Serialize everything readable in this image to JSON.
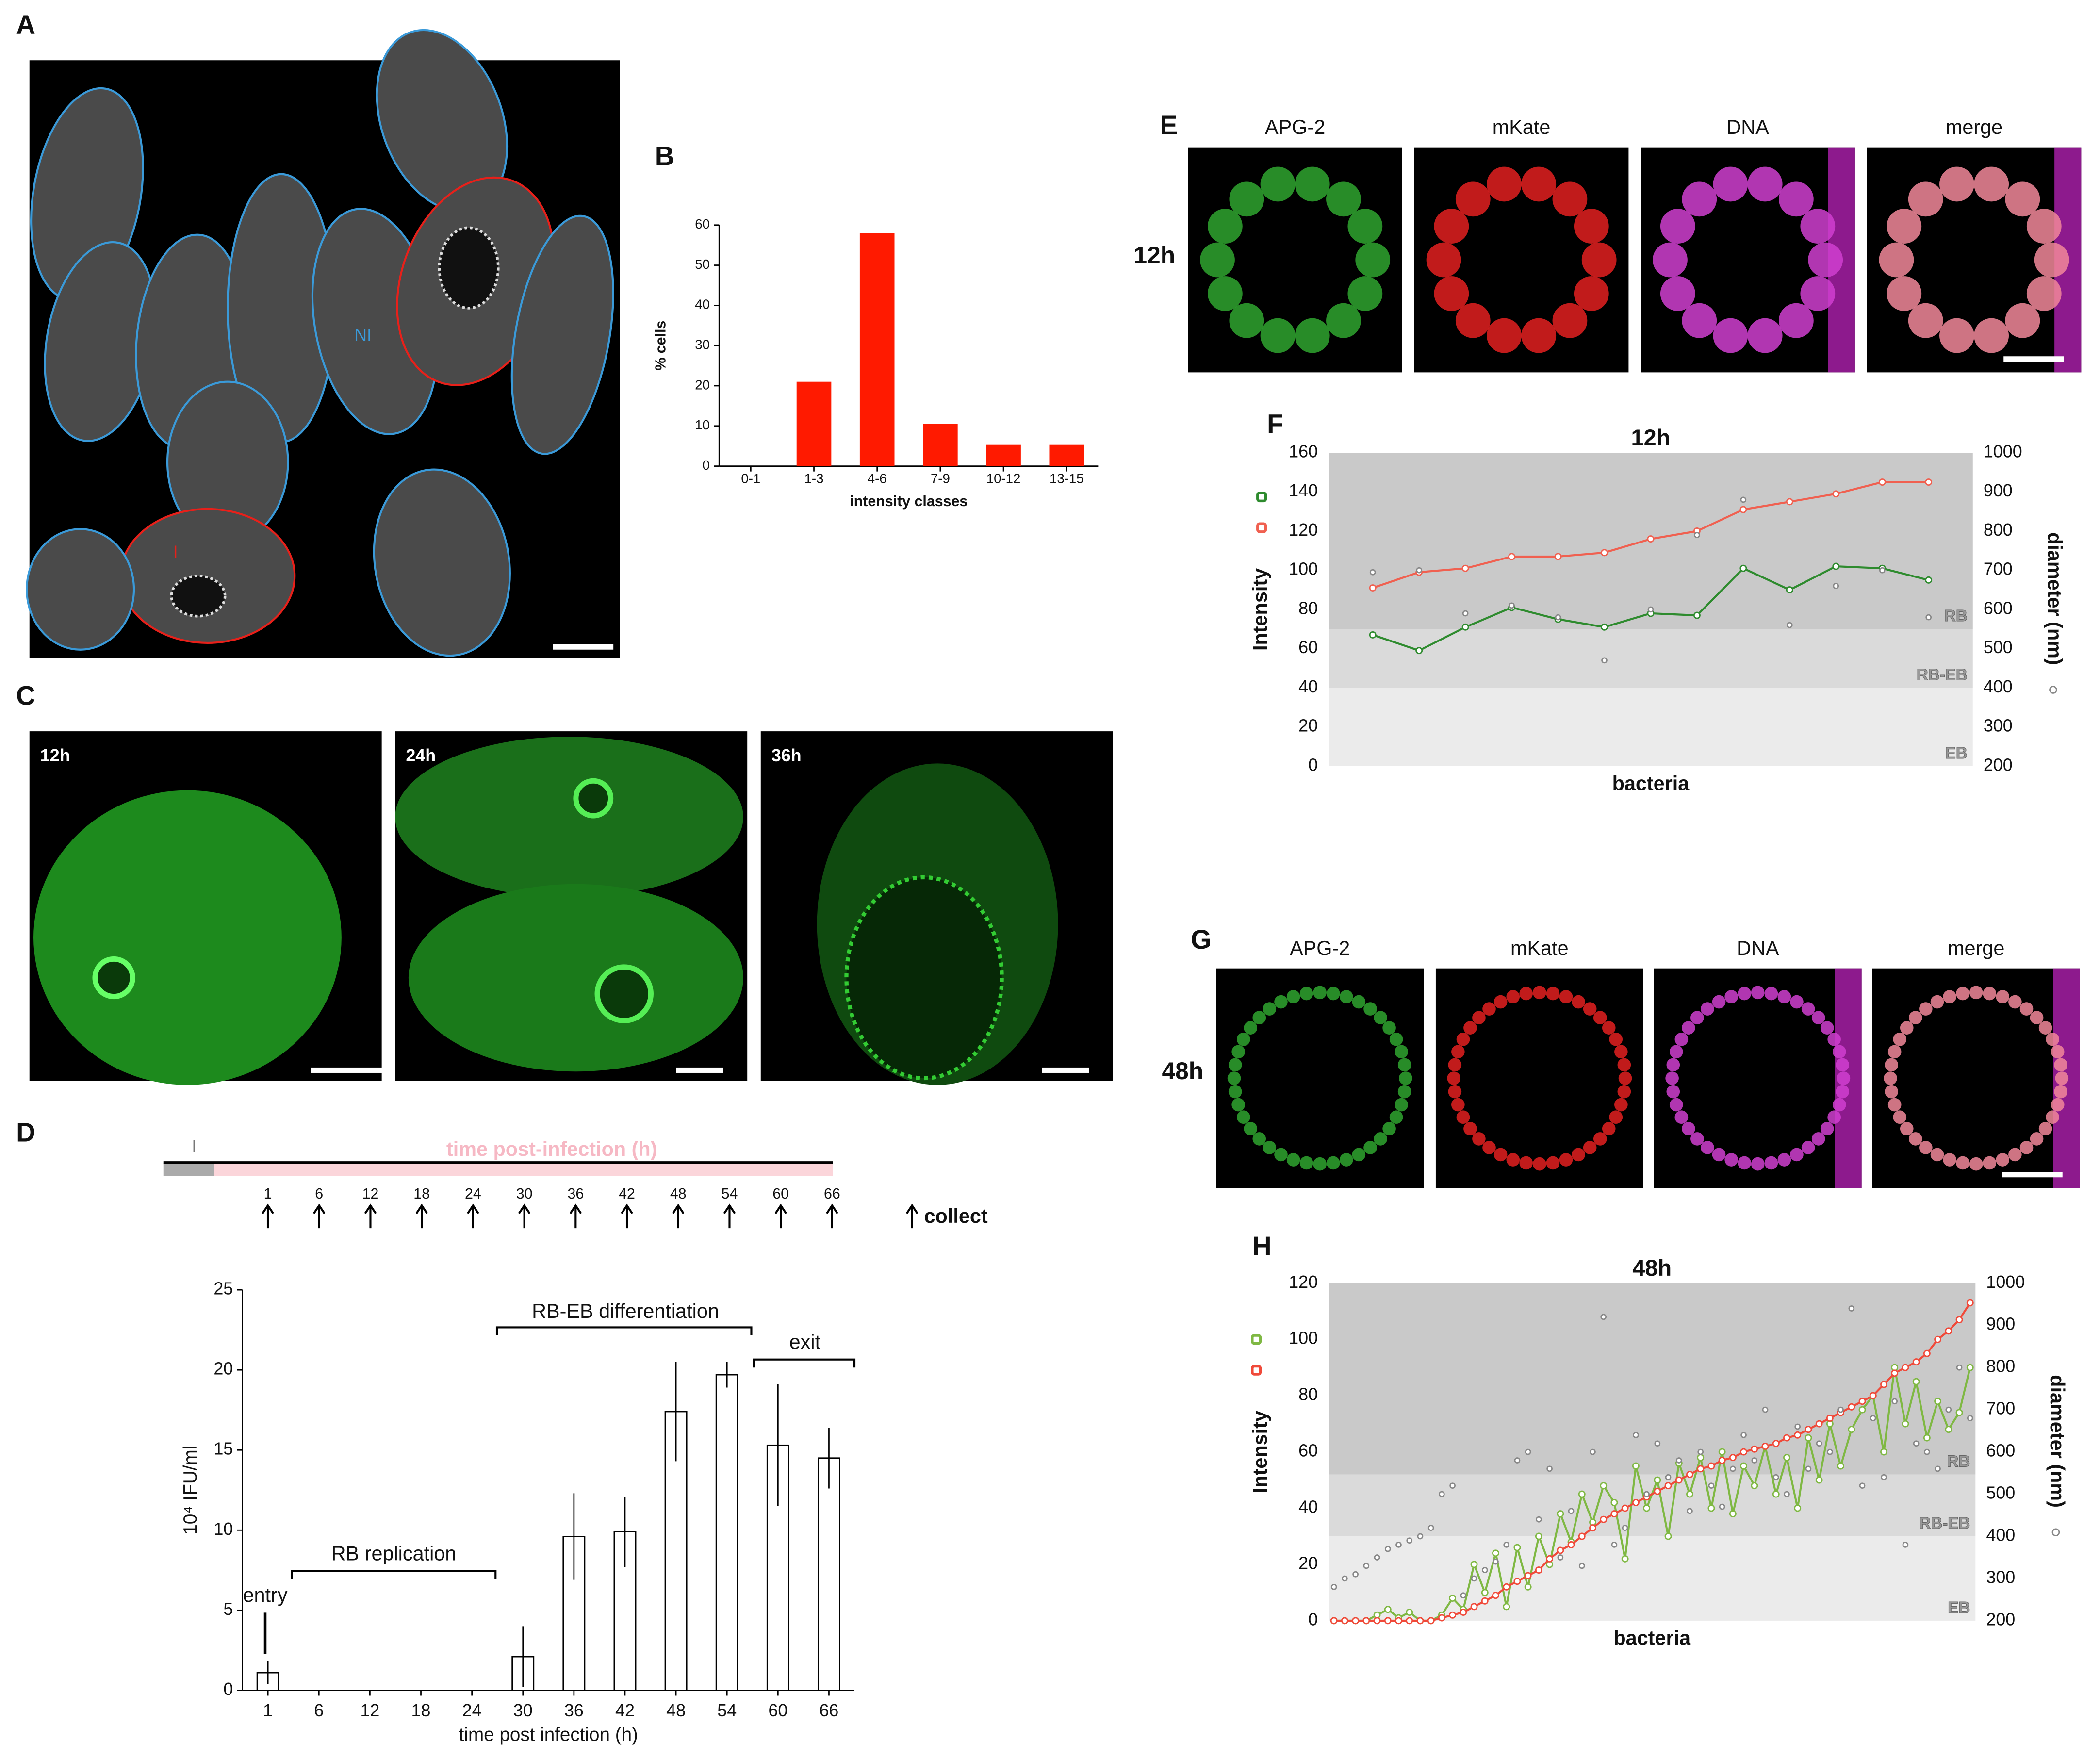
{
  "panels": [
    "A",
    "B",
    "C",
    "D",
    "E",
    "F",
    "G",
    "H"
  ],
  "images": {
    "A": {
      "labels": [
        "NI",
        "I"
      ]
    },
    "C": {
      "labels": [
        "12h",
        "24h",
        "36h"
      ]
    },
    "E": {
      "time": "12h",
      "channels": [
        "APG-2",
        "mKate",
        "DNA",
        "merge"
      ]
    },
    "G": {
      "time": "48h",
      "channels": [
        "APG-2",
        "mKate",
        "DNA",
        "merge"
      ]
    }
  },
  "timeline": {
    "marker": "I",
    "label": "time post-infection (h)",
    "ticks": [
      1,
      6,
      12,
      18,
      24,
      30,
      36,
      42,
      48,
      54,
      60,
      66
    ],
    "legend": "collect"
  },
  "chart_data": [
    {
      "type": "bar",
      "ylabel": "% cells",
      "xlabel": "intensity classes",
      "categories": [
        "0-1",
        "1-3",
        "4-6",
        "7-9",
        "10-12",
        "13-15"
      ],
      "values": [
        0,
        21,
        58,
        10.5,
        5.3,
        5.3
      ],
      "color": "#ff1a00",
      "ylim": [
        0,
        60
      ],
      "yticks": [
        0,
        10,
        20,
        30,
        40,
        50,
        60
      ]
    },
    {
      "type": "bar",
      "ylabel": "10⁴ IFU/ml",
      "xlabel": "time post infection (h)",
      "categories": [
        "1",
        "6",
        "12",
        "18",
        "24",
        "30",
        "36",
        "42",
        "48",
        "54",
        "60",
        "66"
      ],
      "values": [
        1.1,
        0,
        0,
        0,
        0,
        2.1,
        9.6,
        9.9,
        17.4,
        19.7,
        15.3,
        14.5
      ],
      "errors": [
        0.7,
        0,
        0,
        0,
        0,
        1.9,
        2.7,
        2.2,
        3.1,
        0.8,
        3.8,
        1.9
      ],
      "color": "#ffffff",
      "edgecolor": "#000000",
      "ylim": [
        0,
        25
      ],
      "yticks": [
        0,
        5,
        10,
        15,
        20,
        25
      ],
      "annotations": [
        "entry",
        "RB replication",
        "RB-EB differentiation",
        "exit"
      ]
    },
    {
      "type": "line",
      "title": "12h",
      "ylabel": "Intensity",
      "y2label": "diameter (nm)",
      "xlabel": "bacteria",
      "ylim": [
        0,
        160
      ],
      "yticks": [
        0,
        20,
        40,
        60,
        80,
        100,
        120,
        140,
        160
      ],
      "y2lim": [
        200,
        1000
      ],
      "y2ticks": [
        200,
        300,
        400,
        500,
        600,
        700,
        800,
        900,
        1000
      ],
      "bands": [
        {
          "label": "RB",
          "from": 70,
          "to": 160,
          "color": "#c9c9c9"
        },
        {
          "label": "RB-EB",
          "from": 40,
          "to": 70,
          "color": "#dadada"
        },
        {
          "label": "EB",
          "from": 0,
          "to": 40,
          "color": "#ebebeb"
        }
      ],
      "series": [
        {
          "color": "#2e8b2e",
          "values": [
            67,
            59,
            71,
            81,
            75,
            71,
            78,
            77,
            101,
            90,
            102,
            101,
            95
          ]
        },
        {
          "color": "#f06050",
          "values": [
            91,
            99,
            101,
            107,
            107,
            109,
            116,
            120,
            131,
            135,
            139,
            145,
            145
          ]
        },
        {
          "color": "#888888",
          "axis": "y2",
          "line": false,
          "values": [
            695,
            700,
            590,
            610,
            580,
            470,
            600,
            790,
            880,
            560,
            660,
            700,
            580
          ]
        }
      ]
    },
    {
      "type": "line",
      "title": "48h",
      "ylabel": "Intensity",
      "y2label": "diameter (nm)",
      "xlabel": "bacteria",
      "ylim": [
        0,
        120
      ],
      "yticks": [
        0,
        20,
        40,
        60,
        80,
        100,
        120
      ],
      "y2lim": [
        200,
        1000
      ],
      "y2ticks": [
        200,
        300,
        400,
        500,
        600,
        700,
        800,
        900,
        1000
      ],
      "bands": [
        {
          "label": "RB",
          "from": 52,
          "to": 120,
          "color": "#c9c9c9"
        },
        {
          "label": "RB-EB",
          "from": 30,
          "to": 52,
          "color": "#dadada"
        },
        {
          "label": "EB",
          "from": 0,
          "to": 30,
          "color": "#ebebeb"
        }
      ],
      "series": [
        {
          "color": "#7fb843",
          "values": [
            0,
            0,
            0,
            0,
            2,
            4,
            1,
            3,
            0,
            0,
            2,
            8,
            4,
            20,
            10,
            24,
            5,
            26,
            12,
            30,
            20,
            38,
            28,
            45,
            35,
            48,
            42,
            22,
            55,
            40,
            50,
            30,
            56,
            45,
            58,
            40,
            60,
            38,
            55,
            48,
            62,
            45,
            58,
            40,
            65,
            50,
            70,
            55,
            68,
            75,
            80,
            60,
            90,
            70,
            85,
            65,
            78,
            68,
            74,
            90
          ]
        },
        {
          "color": "#f04a3a",
          "values": [
            0,
            0,
            0,
            0,
            0,
            0,
            0,
            0,
            0,
            0,
            1,
            2,
            3,
            5,
            7,
            9,
            12,
            14,
            16,
            18,
            22,
            25,
            27,
            30,
            33,
            36,
            38,
            40,
            42,
            44,
            46,
            48,
            50,
            52,
            54,
            55,
            57,
            58,
            60,
            61,
            62,
            63,
            65,
            66,
            68,
            70,
            72,
            74,
            76,
            78,
            80,
            84,
            88,
            90,
            92,
            95,
            100,
            103,
            107,
            113
          ]
        },
        {
          "color": "#888888",
          "axis": "y2",
          "line": false,
          "values": [
            280,
            300,
            310,
            330,
            350,
            370,
            380,
            390,
            400,
            420,
            500,
            520,
            260,
            300,
            320,
            340,
            380,
            580,
            600,
            440,
            560,
            350,
            460,
            330,
            600,
            920,
            380,
            420,
            640,
            500,
            620,
            540,
            580,
            460,
            600,
            520,
            470,
            560,
            640,
            580,
            700,
            540,
            500,
            660,
            560,
            620,
            600,
            700,
            940,
            520,
            680,
            540,
            720,
            380,
            620,
            600,
            560,
            700,
            800,
            680
          ]
        }
      ]
    }
  ]
}
